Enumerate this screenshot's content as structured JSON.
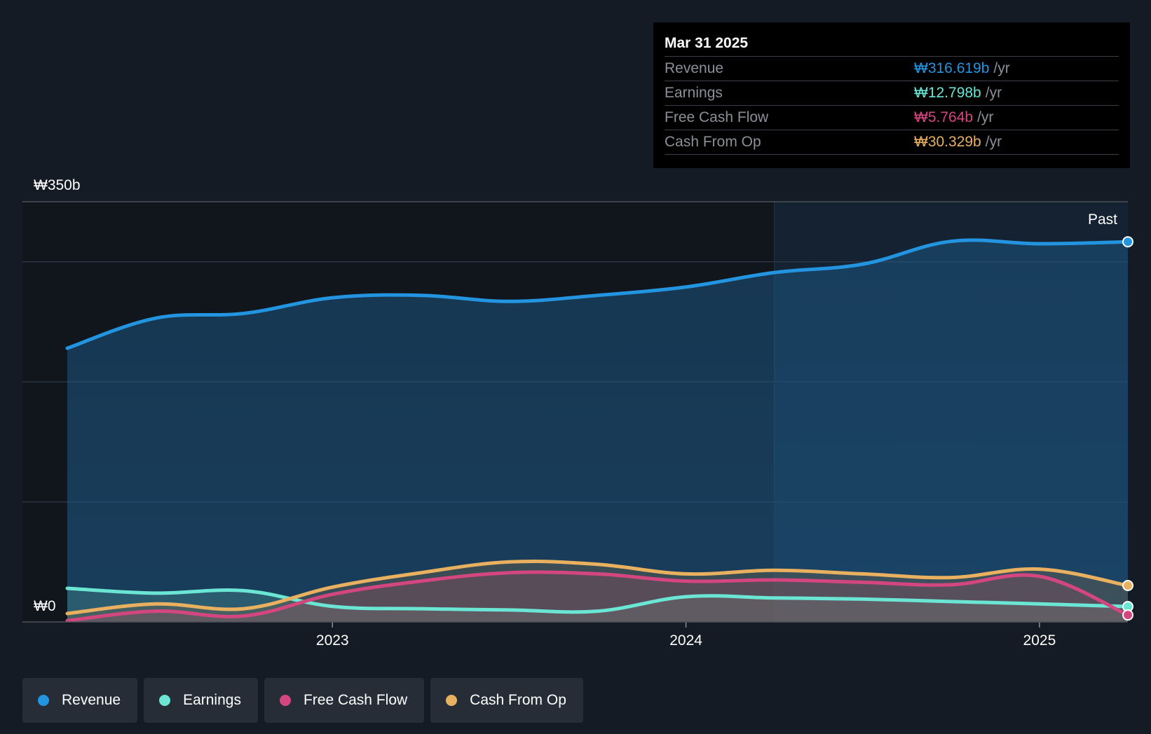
{
  "tooltip": {
    "date": "Mar 31 2025",
    "rows": [
      {
        "label": "Revenue",
        "value": "₩316.619b",
        "unit": "/yr",
        "color": "#2394df"
      },
      {
        "label": "Earnings",
        "value": "₩12.798b",
        "unit": "/yr",
        "color": "#6be5d4"
      },
      {
        "label": "Free Cash Flow",
        "value": "₩5.764b",
        "unit": "/yr",
        "color": "#d4467f"
      },
      {
        "label": "Cash From Op",
        "value": "₩30.329b",
        "unit": "/yr",
        "color": "#e9b15f"
      }
    ]
  },
  "legend": [
    {
      "label": "Revenue",
      "color": "#2394df"
    },
    {
      "label": "Earnings",
      "color": "#6be5d4"
    },
    {
      "label": "Free Cash Flow",
      "color": "#d4467f"
    },
    {
      "label": "Cash From Op",
      "color": "#e9b15f"
    }
  ],
  "chart_data": {
    "type": "area",
    "title": "",
    "y_top_label": "₩350b",
    "y_bottom_label": "₩0",
    "past_label": "Past",
    "ylim": [
      0,
      350
    ],
    "xlim": [
      2022.25,
      2025.25
    ],
    "past_start": 2024.25,
    "x_ticks": [
      2023,
      2024,
      2025
    ],
    "x_tick_labels": [
      "2023",
      "2024",
      "2025"
    ],
    "gridlines": [
      0,
      100,
      200,
      300,
      350
    ],
    "x": [
      2022.25,
      2022.5,
      2022.75,
      2023.0,
      2023.25,
      2023.5,
      2023.75,
      2024.0,
      2024.25,
      2024.5,
      2024.75,
      2025.0,
      2025.25
    ],
    "series": [
      {
        "name": "Revenue",
        "color": "#2394df",
        "values": [
          228,
          253,
          257,
          270,
          272,
          267,
          272,
          279,
          291,
          298,
          317,
          315,
          316.619
        ]
      },
      {
        "name": "Earnings",
        "color": "#6be5d4",
        "values": [
          28,
          24,
          26,
          13,
          11,
          10,
          9,
          21,
          20,
          19,
          17,
          15,
          12.798
        ]
      },
      {
        "name": "Free Cash Flow",
        "color": "#d4467f",
        "values": [
          1,
          9,
          5,
          23,
          34,
          41,
          40,
          34,
          35,
          33,
          31,
          38,
          5.764
        ]
      },
      {
        "name": "Cash From Op",
        "color": "#e9b15f",
        "values": [
          7,
          15,
          11,
          29,
          41,
          50,
          48,
          40,
          43,
          40,
          37,
          44,
          30.329
        ]
      }
    ]
  }
}
